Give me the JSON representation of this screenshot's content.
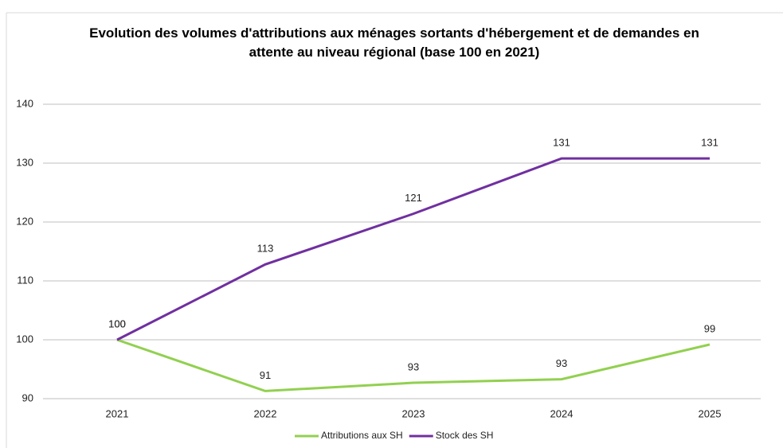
{
  "chart_data": {
    "type": "line",
    "title": "Evolution des volumes d'attributions aux ménages sortants d'hébergement et de demandes en attente au niveau régional (base 100 en 2021)",
    "categories": [
      "2021",
      "2022",
      "2023",
      "2024",
      "2025"
    ],
    "series": [
      {
        "name": "Attributions aux SH",
        "color": "#92d050",
        "values": [
          100,
          91.3,
          92.7,
          93.3,
          99.2
        ],
        "value_labels": [
          "100",
          "91",
          "93",
          "93",
          "99"
        ]
      },
      {
        "name": "Stock des SH",
        "color": "#7030a0",
        "values": [
          100,
          112.8,
          121.4,
          130.8,
          130.8
        ],
        "value_labels": [
          "100",
          "113",
          "121",
          "131",
          "131"
        ]
      }
    ],
    "ylim": [
      90,
      140
    ],
    "yticks": [
      90,
      100,
      110,
      120,
      130,
      140
    ],
    "grid": true,
    "legend": "bottom"
  }
}
